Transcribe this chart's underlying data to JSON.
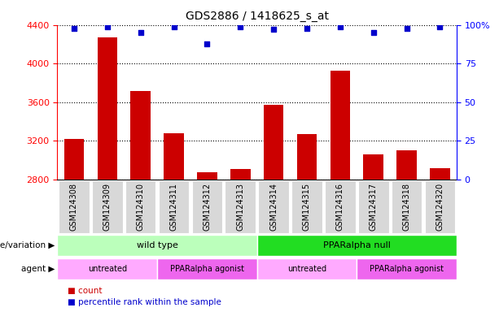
{
  "title": "GDS2886 / 1418625_s_at",
  "samples": [
    "GSM124308",
    "GSM124309",
    "GSM124310",
    "GSM124311",
    "GSM124312",
    "GSM124313",
    "GSM124314",
    "GSM124315",
    "GSM124316",
    "GSM124317",
    "GSM124318",
    "GSM124320"
  ],
  "counts": [
    3220,
    4270,
    3720,
    3280,
    2870,
    2910,
    3570,
    3270,
    3930,
    3060,
    3100,
    2920
  ],
  "percentile_ranks": [
    98,
    99,
    95,
    99,
    88,
    99,
    97,
    98,
    99,
    95,
    98,
    99
  ],
  "ylim_left": [
    2800,
    4400
  ],
  "ylim_right": [
    0,
    100
  ],
  "yticks_left": [
    2800,
    3200,
    3600,
    4000,
    4400
  ],
  "yticks_right": [
    0,
    25,
    50,
    75,
    100
  ],
  "bar_color": "#cc0000",
  "dot_color": "#0000cc",
  "bar_width": 0.6,
  "genotype_groups": [
    {
      "label": "wild type",
      "start": 0,
      "end": 6,
      "color": "#bbffbb"
    },
    {
      "label": "PPARalpha null",
      "start": 6,
      "end": 12,
      "color": "#22dd22"
    }
  ],
  "agent_groups": [
    {
      "label": "untreated",
      "start": 0,
      "end": 3,
      "color": "#ffaaff"
    },
    {
      "label": "PPARalpha agonist",
      "start": 3,
      "end": 6,
      "color": "#ee66ee"
    },
    {
      "label": "untreated",
      "start": 6,
      "end": 9,
      "color": "#ffaaff"
    },
    {
      "label": "PPARalpha agonist",
      "start": 9,
      "end": 12,
      "color": "#ee66ee"
    }
  ],
  "row_labels": [
    "genotype/variation",
    "agent"
  ],
  "legend_count_label": "count",
  "legend_pct_label": "percentile rank within the sample",
  "sample_box_color": "#d8d8d8",
  "tick_label_fontsize": 7,
  "annot_fontsize": 8
}
